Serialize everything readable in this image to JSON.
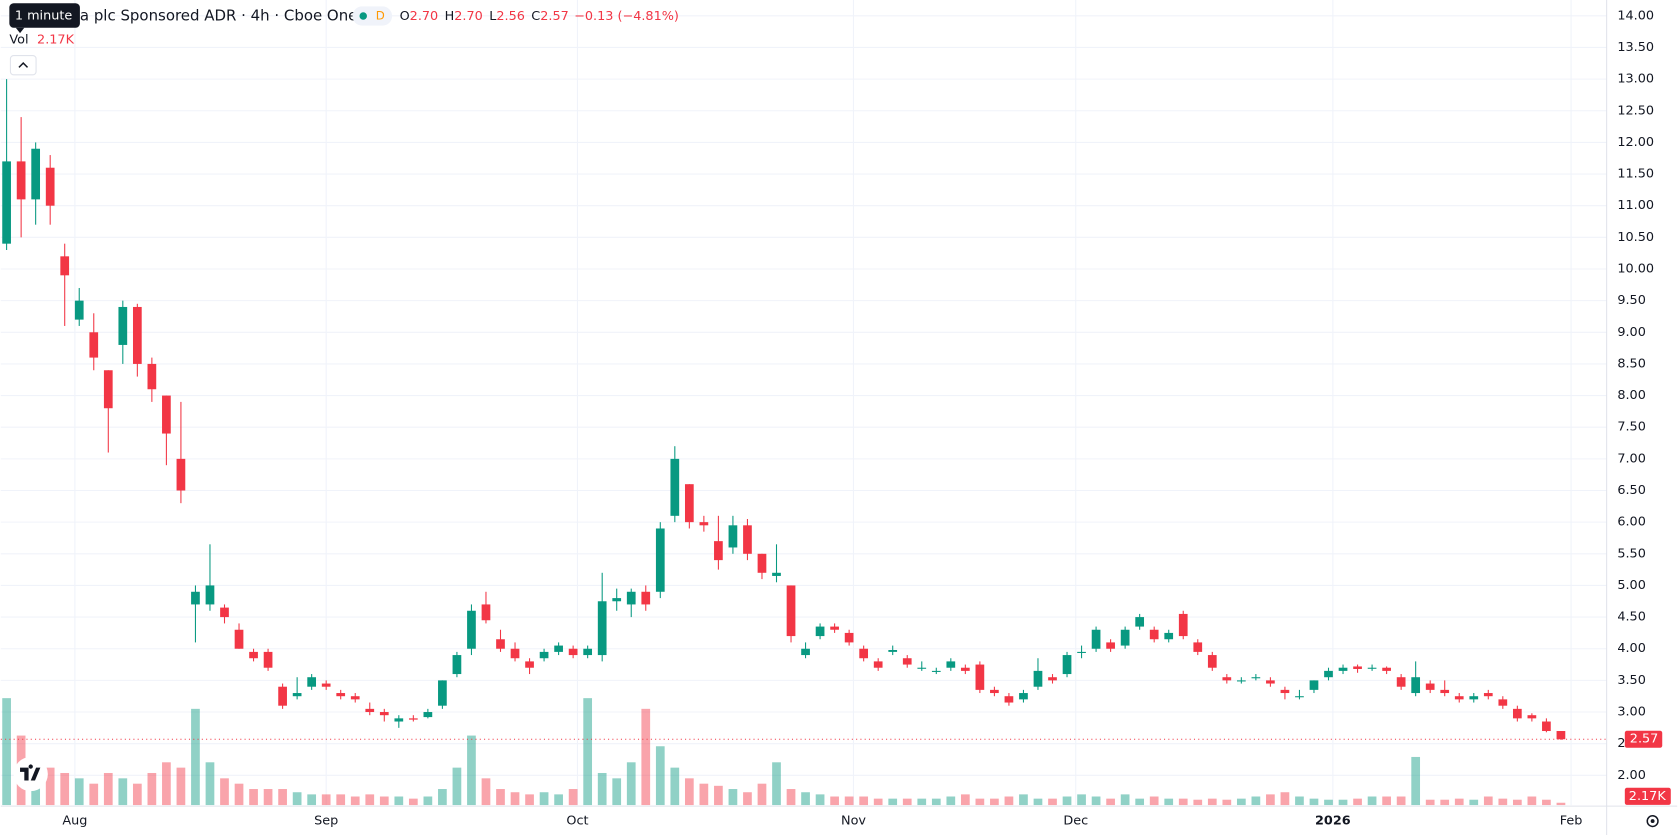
{
  "chart_data": {
    "type": "candlestick",
    "tooltip": "1 minute",
    "title": "a plc Sponsored ADR · 4h · Cboe One",
    "badge": "D",
    "ohlc_legend": [
      {
        "key": "O",
        "value": 2.7,
        "label": "2.70"
      },
      {
        "key": "H",
        "value": 2.7,
        "label": "2.70"
      },
      {
        "key": "L",
        "value": 2.56,
        "label": "2.56"
      },
      {
        "key": "C",
        "value": 2.57,
        "label": "2.57"
      }
    ],
    "change_label": "−0.13 (−4.81%)",
    "volume_title": "Vol",
    "volume_value": {
      "value": 2170,
      "label": "2.17K"
    },
    "last_price": {
      "value": 2.57,
      "label": "2.57"
    },
    "up_color": "#089981",
    "down_color": "#f23645",
    "grid": true,
    "xlim": [
      -0.4,
      110
    ],
    "xticks": [
      {
        "value": 4.7,
        "label": "Aug"
      },
      {
        "value": 22.0,
        "label": "Sep"
      },
      {
        "value": 39.3,
        "label": "Oct"
      },
      {
        "value": 58.3,
        "label": "Nov"
      },
      {
        "value": 73.6,
        "label": "Dec"
      },
      {
        "value": 91.3,
        "label": "2026"
      },
      {
        "value": 107.7,
        "label": "Feb"
      }
    ],
    "ylim": [
      1.53,
      14.25
    ],
    "yticks": [
      {
        "value": 2,
        "label": "2.00"
      },
      {
        "value": 2.5,
        "label": "2.50"
      },
      {
        "value": 3,
        "label": "3.00"
      },
      {
        "value": 3.5,
        "label": "3.50"
      },
      {
        "value": 4,
        "label": "4.00"
      },
      {
        "value": 4.5,
        "label": "4.50"
      },
      {
        "value": 5,
        "label": "5.00"
      },
      {
        "value": 5.5,
        "label": "5.50"
      },
      {
        "value": 6,
        "label": "6.00"
      },
      {
        "value": 6.5,
        "label": "6.50"
      },
      {
        "value": 7,
        "label": "7.00"
      },
      {
        "value": 7.5,
        "label": "7.50"
      },
      {
        "value": 8,
        "label": "8.00"
      },
      {
        "value": 8.5,
        "label": "8.50"
      },
      {
        "value": 9,
        "label": "9.00"
      },
      {
        "value": 9.5,
        "label": "9.50"
      },
      {
        "value": 10,
        "label": "10.00"
      },
      {
        "value": 10.5,
        "label": "10.50"
      },
      {
        "value": 11,
        "label": "11.00"
      },
      {
        "value": 11.5,
        "label": "11.50"
      },
      {
        "value": 12,
        "label": "12.00"
      },
      {
        "value": 12.5,
        "label": "12.50"
      },
      {
        "value": 13,
        "label": "13.00"
      },
      {
        "value": 13.5,
        "label": "13.50"
      },
      {
        "value": 14,
        "label": "14.00"
      }
    ],
    "vlim": [
      0,
      100000
    ],
    "ohlc": [
      [
        10.4,
        13.0,
        10.3,
        11.7
      ],
      [
        11.7,
        12.4,
        10.5,
        11.1
      ],
      [
        11.1,
        12.0,
        10.7,
        11.9
      ],
      [
        11.6,
        11.8,
        10.7,
        11.0
      ],
      [
        10.2,
        10.4,
        9.1,
        9.9
      ],
      [
        9.2,
        9.7,
        9.1,
        9.5
      ],
      [
        9.0,
        9.3,
        8.4,
        8.6
      ],
      [
        8.4,
        8.4,
        7.1,
        7.8
      ],
      [
        8.8,
        9.5,
        8.5,
        9.4
      ],
      [
        9.4,
        9.45,
        8.3,
        8.5
      ],
      [
        8.5,
        8.6,
        7.9,
        8.1
      ],
      [
        8.0,
        8.0,
        6.9,
        7.4
      ],
      [
        7.0,
        7.9,
        6.3,
        6.5
      ],
      [
        4.7,
        5.0,
        4.1,
        4.9
      ],
      [
        4.7,
        5.65,
        4.6,
        5.0
      ],
      [
        4.65,
        4.7,
        4.4,
        4.5
      ],
      [
        4.3,
        4.4,
        4.0,
        4.0
      ],
      [
        3.95,
        4.0,
        3.8,
        3.85
      ],
      [
        3.95,
        4.0,
        3.65,
        3.7
      ],
      [
        3.4,
        3.45,
        3.05,
        3.1
      ],
      [
        3.25,
        3.55,
        3.2,
        3.3
      ],
      [
        3.4,
        3.6,
        3.35,
        3.55
      ],
      [
        3.45,
        3.5,
        3.35,
        3.4
      ],
      [
        3.3,
        3.35,
        3.2,
        3.25
      ],
      [
        3.25,
        3.3,
        3.15,
        3.2
      ],
      [
        3.05,
        3.15,
        2.95,
        3.0
      ],
      [
        3.0,
        3.05,
        2.85,
        2.95
      ],
      [
        2.85,
        2.95,
        2.75,
        2.9
      ],
      [
        2.9,
        2.95,
        2.85,
        2.88
      ],
      [
        2.92,
        3.05,
        2.9,
        3.0
      ],
      [
        3.1,
        3.5,
        3.05,
        3.5
      ],
      [
        3.6,
        3.95,
        3.55,
        3.9
      ],
      [
        4.0,
        4.7,
        3.9,
        4.6
      ],
      [
        4.7,
        4.9,
        4.4,
        4.45
      ],
      [
        4.15,
        4.3,
        3.95,
        4.0
      ],
      [
        4.0,
        4.1,
        3.8,
        3.85
      ],
      [
        3.8,
        3.85,
        3.6,
        3.7
      ],
      [
        3.85,
        4.0,
        3.8,
        3.95
      ],
      [
        3.95,
        4.1,
        3.9,
        4.05
      ],
      [
        4.0,
        4.05,
        3.85,
        3.9
      ],
      [
        3.9,
        4.05,
        3.85,
        4.0
      ],
      [
        3.9,
        5.2,
        3.8,
        4.75
      ],
      [
        4.75,
        4.95,
        4.6,
        4.8
      ],
      [
        4.7,
        4.95,
        4.5,
        4.9
      ],
      [
        4.9,
        5.0,
        4.6,
        4.7
      ],
      [
        4.9,
        6.0,
        4.8,
        5.9
      ],
      [
        6.1,
        7.2,
        6.0,
        7.0
      ],
      [
        6.6,
        6.6,
        5.9,
        6.0
      ],
      [
        6.0,
        6.1,
        5.85,
        5.95
      ],
      [
        5.7,
        6.1,
        5.25,
        5.4
      ],
      [
        5.6,
        6.1,
        5.5,
        5.95
      ],
      [
        5.95,
        6.05,
        5.4,
        5.5
      ],
      [
        5.5,
        5.5,
        5.1,
        5.2
      ],
      [
        5.15,
        5.65,
        5.05,
        5.2
      ],
      [
        5.0,
        5.0,
        4.1,
        4.2
      ],
      [
        3.9,
        4.1,
        3.85,
        4.0
      ],
      [
        4.2,
        4.4,
        4.15,
        4.35
      ],
      [
        4.35,
        4.4,
        4.25,
        4.3
      ],
      [
        4.25,
        4.3,
        4.05,
        4.1
      ],
      [
        4.0,
        4.05,
        3.8,
        3.85
      ],
      [
        3.8,
        3.85,
        3.65,
        3.7
      ],
      [
        3.95,
        4.05,
        3.9,
        3.98
      ],
      [
        3.85,
        3.9,
        3.7,
        3.75
      ],
      [
        3.7,
        3.8,
        3.65,
        3.7
      ],
      [
        3.65,
        3.7,
        3.6,
        3.65
      ],
      [
        3.7,
        3.85,
        3.65,
        3.8
      ],
      [
        3.7,
        3.75,
        3.6,
        3.65
      ],
      [
        3.75,
        3.8,
        3.3,
        3.35
      ],
      [
        3.35,
        3.4,
        3.25,
        3.3
      ],
      [
        3.25,
        3.3,
        3.1,
        3.15
      ],
      [
        3.2,
        3.35,
        3.15,
        3.3
      ],
      [
        3.4,
        3.85,
        3.35,
        3.65
      ],
      [
        3.55,
        3.6,
        3.45,
        3.5
      ],
      [
        3.6,
        3.95,
        3.55,
        3.9
      ],
      [
        3.95,
        4.05,
        3.85,
        3.95
      ],
      [
        4.0,
        4.35,
        3.95,
        4.3
      ],
      [
        4.1,
        4.15,
        3.95,
        4.0
      ],
      [
        4.05,
        4.35,
        4.0,
        4.3
      ],
      [
        4.35,
        4.55,
        4.3,
        4.5
      ],
      [
        4.3,
        4.35,
        4.1,
        4.15
      ],
      [
        4.15,
        4.3,
        4.1,
        4.25
      ],
      [
        4.55,
        4.6,
        4.15,
        4.2
      ],
      [
        4.1,
        4.15,
        3.9,
        3.95
      ],
      [
        3.9,
        3.95,
        3.65,
        3.7
      ],
      [
        3.55,
        3.6,
        3.45,
        3.5
      ],
      [
        3.5,
        3.55,
        3.45,
        3.5
      ],
      [
        3.55,
        3.6,
        3.5,
        3.55
      ],
      [
        3.5,
        3.55,
        3.4,
        3.45
      ],
      [
        3.35,
        3.4,
        3.2,
        3.3
      ],
      [
        3.25,
        3.35,
        3.2,
        3.25
      ],
      [
        3.35,
        3.5,
        3.3,
        3.5
      ],
      [
        3.55,
        3.7,
        3.5,
        3.65
      ],
      [
        3.65,
        3.75,
        3.6,
        3.7
      ],
      [
        3.72,
        3.75,
        3.62,
        3.68
      ],
      [
        3.7,
        3.75,
        3.65,
        3.7
      ],
      [
        3.7,
        3.72,
        3.6,
        3.65
      ],
      [
        3.55,
        3.6,
        3.35,
        3.4
      ],
      [
        3.3,
        3.8,
        3.25,
        3.55
      ],
      [
        3.45,
        3.5,
        3.3,
        3.35
      ],
      [
        3.35,
        3.5,
        3.25,
        3.3
      ],
      [
        3.25,
        3.3,
        3.15,
        3.2
      ],
      [
        3.2,
        3.3,
        3.15,
        3.25
      ],
      [
        3.3,
        3.35,
        3.2,
        3.25
      ],
      [
        3.2,
        3.25,
        3.05,
        3.1
      ],
      [
        3.05,
        3.1,
        2.85,
        2.9
      ],
      [
        2.95,
        2.98,
        2.85,
        2.9
      ],
      [
        2.85,
        2.9,
        2.68,
        2.7
      ],
      [
        2.7,
        2.7,
        2.56,
        2.57
      ]
    ],
    "volume": [
      100000,
      65000,
      40000,
      35000,
      30000,
      25000,
      20000,
      30000,
      25000,
      20000,
      30000,
      40000,
      35000,
      90000,
      40000,
      25000,
      20000,
      15000,
      15000,
      15000,
      12000,
      10000,
      10000,
      10000,
      8000,
      10000,
      8000,
      8000,
      6000,
      8000,
      15000,
      35000,
      65000,
      25000,
      15000,
      12000,
      10000,
      12000,
      10000,
      15000,
      100000,
      30000,
      25000,
      40000,
      90000,
      55000,
      35000,
      25000,
      20000,
      18000,
      15000,
      12000,
      20000,
      40000,
      15000,
      12000,
      10000,
      8000,
      8000,
      8000,
      6000,
      6000,
      6000,
      6000,
      6000,
      8000,
      10000,
      6000,
      6000,
      8000,
      10000,
      6000,
      6000,
      8000,
      10000,
      8000,
      6000,
      10000,
      6000,
      8000,
      6000,
      6000,
      5000,
      6000,
      5000,
      6000,
      8000,
      10000,
      12000,
      8000,
      6000,
      5000,
      5000,
      6000,
      8000,
      8000,
      8000,
      45000,
      5000,
      5000,
      6000,
      5000,
      8000,
      6000,
      5000,
      8000,
      5000,
      2170
    ]
  }
}
